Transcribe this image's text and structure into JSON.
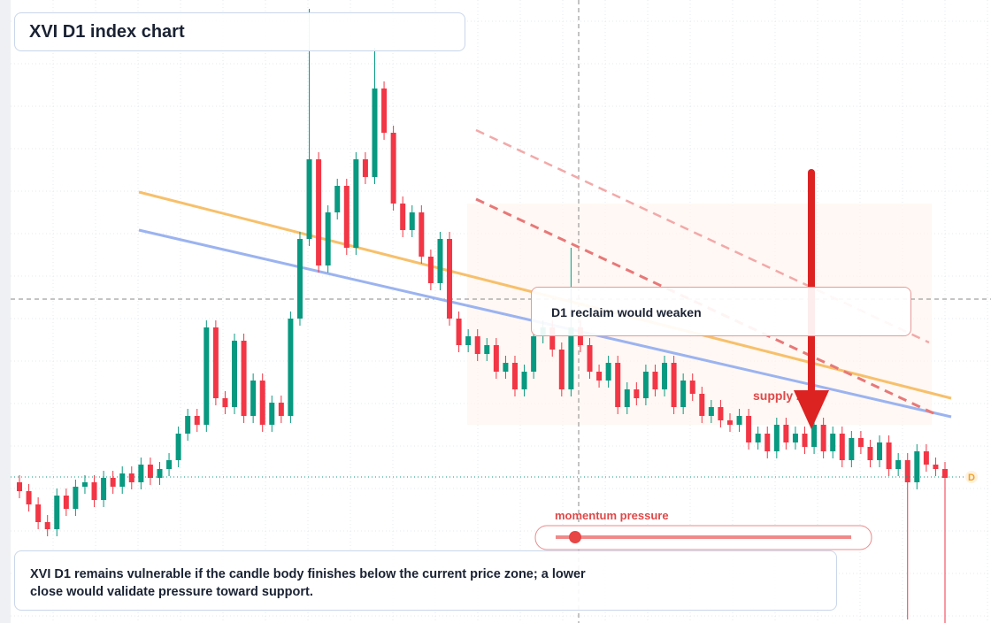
{
  "chart_data": {
    "type": "candlestick",
    "title": "XVI D1 index chart",
    "annotations": {
      "reclaim": "D1 reclaim would weaken",
      "supply": "supply zone",
      "momentum": "momentum pressure",
      "note": "XVI D1 remains vulnerable if the candle body finishes below the current price zone; a lower close would validate pressure toward support.",
      "price_marker": "D"
    },
    "ylim": [
      0,
      704
    ],
    "up_color": "#089981",
    "down_color": "#f23645",
    "open": [
      159,
      149,
      134,
      114,
      106,
      144,
      129,
      154,
      159,
      139,
      164,
      154,
      169,
      159,
      179,
      164,
      174,
      184,
      214,
      234,
      224,
      334,
      254,
      244,
      319,
      234,
      274,
      224,
      249,
      234,
      344,
      434,
      524,
      404,
      464,
      494,
      424,
      524,
      504,
      604,
      554,
      474,
      444,
      464,
      414,
      384,
      434,
      344,
      314,
      324,
      304,
      314,
      284,
      294,
      264,
      284,
      324,
      334,
      309,
      264,
      334,
      314,
      284,
      274,
      294,
      244,
      264,
      254,
      284,
      264,
      294,
      244,
      274,
      259,
      234,
      244,
      229,
      224,
      234,
      204,
      214,
      194,
      224,
      204,
      214,
      199,
      224,
      194,
      214,
      184,
      209,
      199,
      184,
      204,
      174,
      184,
      159,
      194,
      179,
      174
    ],
    "high": [
      167,
      157,
      142,
      122,
      152,
      152,
      162,
      167,
      167,
      172,
      172,
      177,
      177,
      187,
      187,
      182,
      192,
      222,
      242,
      242,
      342,
      342,
      262,
      327,
      327,
      282,
      282,
      257,
      257,
      352,
      442,
      694,
      532,
      472,
      502,
      502,
      532,
      532,
      650,
      612,
      562,
      482,
      472,
      472,
      422,
      442,
      442,
      352,
      332,
      332,
      322,
      322,
      302,
      302,
      292,
      332,
      342,
      342,
      317,
      424,
      342,
      322,
      292,
      302,
      302,
      272,
      272,
      292,
      292,
      302,
      302,
      282,
      282,
      267,
      252,
      252,
      237,
      242,
      242,
      222,
      222,
      232,
      232,
      222,
      222,
      232,
      232,
      222,
      222,
      217,
      217,
      207,
      212,
      212,
      192,
      192,
      202,
      202,
      187,
      182
    ],
    "low": [
      141,
      126,
      106,
      98,
      98,
      121,
      121,
      146,
      131,
      131,
      146,
      146,
      151,
      151,
      156,
      156,
      166,
      176,
      206,
      216,
      216,
      246,
      236,
      236,
      226,
      226,
      216,
      216,
      226,
      226,
      336,
      426,
      396,
      396,
      456,
      416,
      416,
      496,
      496,
      546,
      466,
      436,
      436,
      406,
      376,
      376,
      336,
      306,
      306,
      296,
      296,
      276,
      276,
      256,
      256,
      276,
      316,
      301,
      256,
      256,
      306,
      276,
      266,
      266,
      236,
      236,
      246,
      246,
      256,
      256,
      236,
      236,
      251,
      226,
      226,
      221,
      216,
      216,
      196,
      196,
      186,
      186,
      196,
      196,
      191,
      191,
      186,
      186,
      176,
      176,
      191,
      176,
      176,
      166,
      166,
      4,
      151,
      171,
      166,
      0
    ],
    "close": [
      149,
      134,
      114,
      106,
      144,
      129,
      154,
      159,
      139,
      164,
      154,
      169,
      159,
      179,
      164,
      174,
      184,
      214,
      234,
      224,
      334,
      254,
      244,
      319,
      234,
      274,
      224,
      249,
      234,
      344,
      434,
      524,
      404,
      464,
      494,
      424,
      524,
      504,
      604,
      554,
      474,
      444,
      464,
      414,
      384,
      434,
      344,
      314,
      324,
      304,
      314,
      284,
      294,
      264,
      284,
      324,
      334,
      309,
      264,
      334,
      314,
      284,
      274,
      294,
      244,
      264,
      254,
      284,
      264,
      294,
      244,
      274,
      259,
      234,
      244,
      229,
      224,
      234,
      204,
      214,
      194,
      224,
      204,
      214,
      199,
      224,
      194,
      214,
      184,
      209,
      199,
      184,
      204,
      174,
      184,
      159,
      194,
      179,
      174,
      164
    ],
    "current_price": 165
  }
}
